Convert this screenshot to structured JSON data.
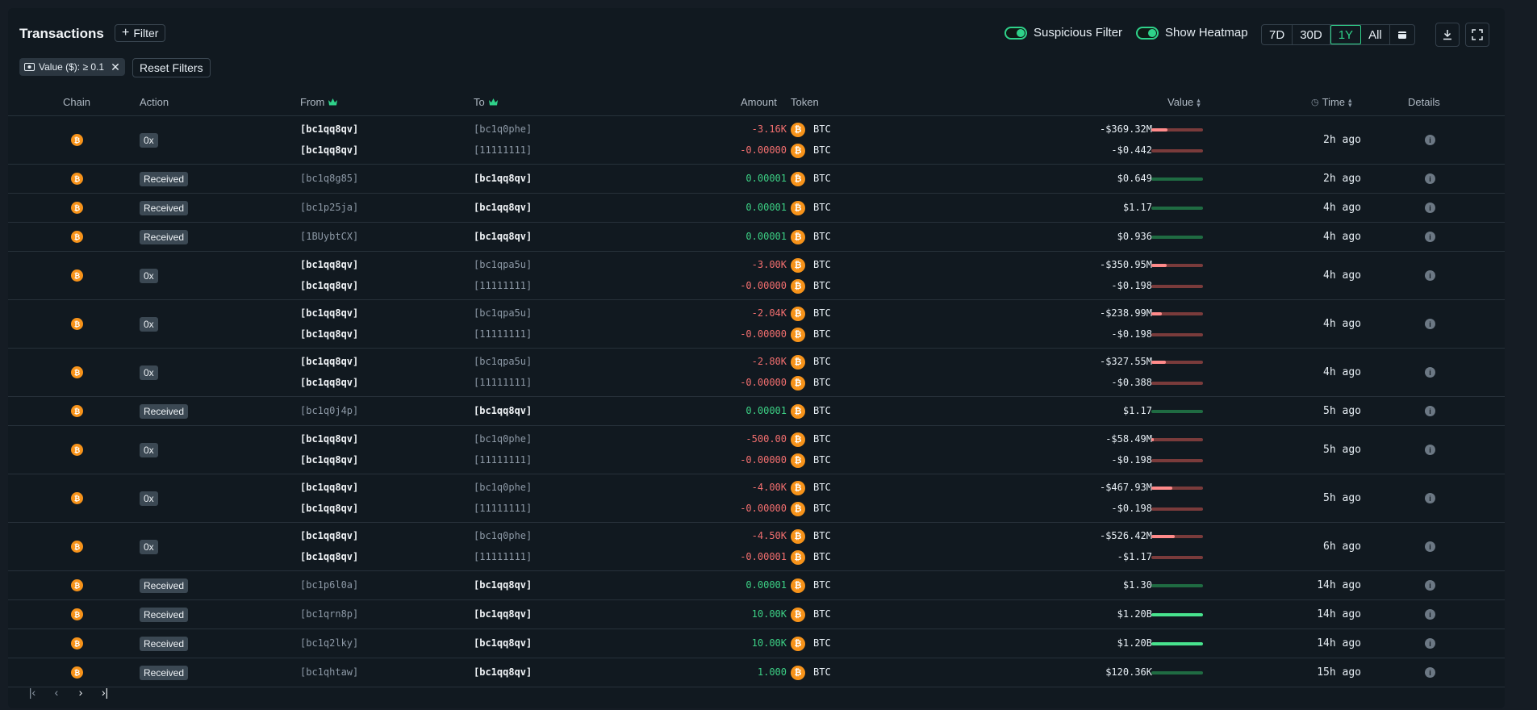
{
  "header": {
    "title": "Transactions",
    "filter_label": "Filter",
    "suspicious_label": "Suspicious Filter",
    "heatmap_label": "Show Heatmap",
    "ranges": [
      "7D",
      "30D",
      "1Y",
      "All"
    ],
    "active_range": "1Y"
  },
  "chips": {
    "active_filter": "Value ($): ≥ 0.1",
    "reset_label": "Reset Filters"
  },
  "columns": {
    "chain": "Chain",
    "action": "Action",
    "from": "From",
    "to": "To",
    "amount": "Amount",
    "token": "Token",
    "value": "Value",
    "time": "Time",
    "details": "Details"
  },
  "colors": {
    "accent": "#2fd28a",
    "negative": "#f36f6f",
    "positive": "#3ccf84",
    "btc": "#f7931a"
  },
  "rows": [
    {
      "action": "0x",
      "time": "2h ago",
      "lines": [
        {
          "from": "[bc1qq8qv]",
          "to": "[bc1q0phe]",
          "amount": "-3.16K",
          "token": "BTC",
          "value": "-$369.32M",
          "level": 0.32
        },
        {
          "from": "[bc1qq8qv]",
          "to": "[11111111]",
          "amount": "-0.00000",
          "token": "BTC",
          "value": "-$0.442",
          "level": 0
        }
      ]
    },
    {
      "action": "Received",
      "time": "2h ago",
      "lines": [
        {
          "from": "[bc1q8g85]",
          "to": "[bc1qq8qv]",
          "amount": "0.00001",
          "token": "BTC",
          "value": "$0.649",
          "level": 0
        }
      ]
    },
    {
      "action": "Received",
      "time": "4h ago",
      "lines": [
        {
          "from": "[bc1p25ja]",
          "to": "[bc1qq8qv]",
          "amount": "0.00001",
          "token": "BTC",
          "value": "$1.17",
          "level": 0
        }
      ]
    },
    {
      "action": "Received",
      "time": "4h ago",
      "lines": [
        {
          "from": "[1BUybtCX]",
          "to": "[bc1qq8qv]",
          "amount": "0.00001",
          "token": "BTC",
          "value": "$0.936",
          "level": 0
        }
      ]
    },
    {
      "action": "0x",
      "time": "4h ago",
      "lines": [
        {
          "from": "[bc1qq8qv]",
          "to": "[bc1qpa5u]",
          "amount": "-3.00K",
          "token": "BTC",
          "value": "-$350.95M",
          "level": 0.3
        },
        {
          "from": "[bc1qq8qv]",
          "to": "[11111111]",
          "amount": "-0.00000",
          "token": "BTC",
          "value": "-$0.198",
          "level": 0
        }
      ]
    },
    {
      "action": "0x",
      "time": "4h ago",
      "lines": [
        {
          "from": "[bc1qq8qv]",
          "to": "[bc1qpa5u]",
          "amount": "-2.04K",
          "token": "BTC",
          "value": "-$238.99M",
          "level": 0.2
        },
        {
          "from": "[bc1qq8qv]",
          "to": "[11111111]",
          "amount": "-0.00000",
          "token": "BTC",
          "value": "-$0.198",
          "level": 0
        }
      ]
    },
    {
      "action": "0x",
      "time": "4h ago",
      "lines": [
        {
          "from": "[bc1qq8qv]",
          "to": "[bc1qpa5u]",
          "amount": "-2.80K",
          "token": "BTC",
          "value": "-$327.55M",
          "level": 0.28
        },
        {
          "from": "[bc1qq8qv]",
          "to": "[11111111]",
          "amount": "-0.00000",
          "token": "BTC",
          "value": "-$0.388",
          "level": 0
        }
      ]
    },
    {
      "action": "Received",
      "time": "5h ago",
      "lines": [
        {
          "from": "[bc1q0j4p]",
          "to": "[bc1qq8qv]",
          "amount": "0.00001",
          "token": "BTC",
          "value": "$1.17",
          "level": 0
        }
      ]
    },
    {
      "action": "0x",
      "time": "5h ago",
      "lines": [
        {
          "from": "[bc1qq8qv]",
          "to": "[bc1q0phe]",
          "amount": "-500.00",
          "token": "BTC",
          "value": "-$58.49M",
          "level": 0.05
        },
        {
          "from": "[bc1qq8qv]",
          "to": "[11111111]",
          "amount": "-0.00000",
          "token": "BTC",
          "value": "-$0.198",
          "level": 0
        }
      ]
    },
    {
      "action": "0x",
      "time": "5h ago",
      "lines": [
        {
          "from": "[bc1qq8qv]",
          "to": "[bc1q0phe]",
          "amount": "-4.00K",
          "token": "BTC",
          "value": "-$467.93M",
          "level": 0.4
        },
        {
          "from": "[bc1qq8qv]",
          "to": "[11111111]",
          "amount": "-0.00000",
          "token": "BTC",
          "value": "-$0.198",
          "level": 0
        }
      ]
    },
    {
      "action": "0x",
      "time": "6h ago",
      "lines": [
        {
          "from": "[bc1qq8qv]",
          "to": "[bc1q0phe]",
          "amount": "-4.50K",
          "token": "BTC",
          "value": "-$526.42M",
          "level": 0.45
        },
        {
          "from": "[bc1qq8qv]",
          "to": "[11111111]",
          "amount": "-0.00001",
          "token": "BTC",
          "value": "-$1.17",
          "level": 0
        }
      ]
    },
    {
      "action": "Received",
      "time": "14h ago",
      "lines": [
        {
          "from": "[bc1p6l0a]",
          "to": "[bc1qq8qv]",
          "amount": "0.00001",
          "token": "BTC",
          "value": "$1.30",
          "level": 0
        }
      ]
    },
    {
      "action": "Received",
      "time": "14h ago",
      "lines": [
        {
          "from": "[bc1qrn8p]",
          "to": "[bc1qq8qv]",
          "amount": "10.00K",
          "token": "BTC",
          "value": "$1.20B",
          "level": 1
        }
      ]
    },
    {
      "action": "Received",
      "time": "14h ago",
      "lines": [
        {
          "from": "[bc1q2lky]",
          "to": "[bc1qq8qv]",
          "amount": "10.00K",
          "token": "BTC",
          "value": "$1.20B",
          "level": 1
        }
      ]
    },
    {
      "action": "Received",
      "time": "15h ago",
      "lines": [
        {
          "from": "[bc1qhtaw]",
          "to": "[bc1qq8qv]",
          "amount": "1.000",
          "token": "BTC",
          "value": "$120.36K",
          "level": 0
        }
      ]
    }
  ],
  "pagination": {
    "icons": [
      "first-page-icon",
      "prev-page-icon",
      "next-page-icon",
      "last-page-icon"
    ]
  }
}
